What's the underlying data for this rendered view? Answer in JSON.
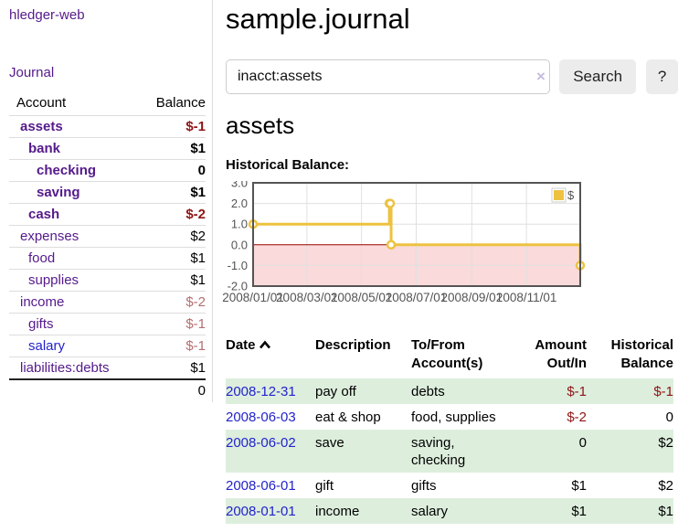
{
  "sidebar": {
    "brand": "hledger-web",
    "nav": {
      "journal": "Journal"
    },
    "accounts_table": {
      "headers": {
        "account": "Account",
        "balance": "Balance"
      },
      "rows": [
        {
          "account": "assets",
          "indent": 1,
          "in_query": true,
          "blue_link": false,
          "balance": "$-1",
          "balance_class": "neg-strong"
        },
        {
          "account": "bank",
          "indent": 2,
          "in_query": true,
          "blue_link": false,
          "balance": "$1",
          "balance_class": "pos"
        },
        {
          "account": "checking",
          "indent": 3,
          "in_query": true,
          "blue_link": false,
          "balance": "0",
          "balance_class": "pos"
        },
        {
          "account": "saving",
          "indent": 3,
          "in_query": true,
          "blue_link": false,
          "balance": "$1",
          "balance_class": "pos"
        },
        {
          "account": "cash",
          "indent": 2,
          "in_query": true,
          "blue_link": false,
          "balance": "$-2",
          "balance_class": "neg-strong"
        },
        {
          "account": "expenses",
          "indent": 1,
          "in_query": false,
          "blue_link": false,
          "balance": "$2",
          "balance_class": "pos"
        },
        {
          "account": "food",
          "indent": 2,
          "in_query": false,
          "blue_link": false,
          "balance": "$1",
          "balance_class": "pos"
        },
        {
          "account": "supplies",
          "indent": 2,
          "in_query": false,
          "blue_link": false,
          "balance": "$1",
          "balance_class": "pos"
        },
        {
          "account": "income",
          "indent": 1,
          "in_query": false,
          "blue_link": false,
          "balance": "$-2",
          "balance_class": "neg-muted"
        },
        {
          "account": "gifts",
          "indent": 2,
          "in_query": false,
          "blue_link": false,
          "balance": "$-1",
          "balance_class": "neg-muted"
        },
        {
          "account": "salary",
          "indent": 2,
          "in_query": false,
          "blue_link": true,
          "balance": "$-1",
          "balance_class": "neg-muted"
        },
        {
          "account": "liabilities:debts",
          "indent": 1,
          "in_query": false,
          "blue_link": false,
          "balance": "$1",
          "balance_class": "pos"
        }
      ],
      "total": "0"
    }
  },
  "main": {
    "title": "sample.journal",
    "search": {
      "value": "inacct:assets",
      "clear_icon": "×",
      "search_label": "Search",
      "help_label": "?"
    },
    "account_heading": "assets",
    "chart_label": "Historical Balance:",
    "transactions": {
      "headers": {
        "date": "Date",
        "description": "Description",
        "accounts": "To/From Account(s)",
        "amount": "Amount Out/In",
        "balance": "Historical Balance"
      },
      "rows": [
        {
          "date": "2008-12-31",
          "description": "pay off",
          "accounts": "debts",
          "amount": "$-1",
          "amount_negative": true,
          "balance": "$-1",
          "balance_negative": true
        },
        {
          "date": "2008-06-03",
          "description": "eat & shop",
          "accounts": "food, supplies",
          "amount": "$-2",
          "amount_negative": true,
          "balance": "0",
          "balance_negative": false
        },
        {
          "date": "2008-06-02",
          "description": "save",
          "accounts": "saving, checking",
          "amount": "0",
          "amount_negative": false,
          "balance": "$2",
          "balance_negative": false
        },
        {
          "date": "2008-06-01",
          "description": "gift",
          "accounts": "gifts",
          "amount": "$1",
          "amount_negative": false,
          "balance": "$2",
          "balance_negative": false
        },
        {
          "date": "2008-01-01",
          "description": "income",
          "accounts": "salary",
          "amount": "$1",
          "amount_negative": false,
          "balance": "$1",
          "balance_negative": false
        }
      ]
    }
  },
  "colors": {
    "link_purple": "#551a8b",
    "link_blue": "#2323cc",
    "negative_strong": "#8f1414",
    "negative_muted": "#b56e6e",
    "row_stripe_green": "#ddeedd",
    "series_yellow": "#edc240"
  },
  "chart_data": {
    "type": "line",
    "title": "Historical Balance:",
    "style": "steps",
    "series": [
      {
        "name": "$",
        "color": "#edc240",
        "points": [
          [
            "2008-01-01",
            1
          ],
          [
            "2008-06-01",
            2
          ],
          [
            "2008-06-02",
            2
          ],
          [
            "2008-06-03",
            0
          ],
          [
            "2008-12-31",
            -1
          ]
        ]
      }
    ],
    "x_range": [
      "2008-01-01",
      "2008-12-31"
    ],
    "x_tick_dates": [
      "2008-01-01",
      "2008-03-01",
      "2008-05-01",
      "2008-07-01",
      "2008-09-01",
      "2008-11-01"
    ],
    "x_ticks": [
      "2008/01/01",
      "2008/03/01",
      "2008/05/01",
      "2008/07/01",
      "2008/09/01",
      "2008/11/01"
    ],
    "y_ticks": [
      "3.0",
      "2.0",
      "1.0",
      "0.0",
      "-1.0",
      "-2.0"
    ],
    "ylim": [
      -2,
      3
    ],
    "grid": true,
    "legend_position": "top-right",
    "negative_region_color": "#fadada",
    "zero_line_color": "#990000",
    "border_color": "#545454",
    "tick_label_color": "#545454"
  }
}
